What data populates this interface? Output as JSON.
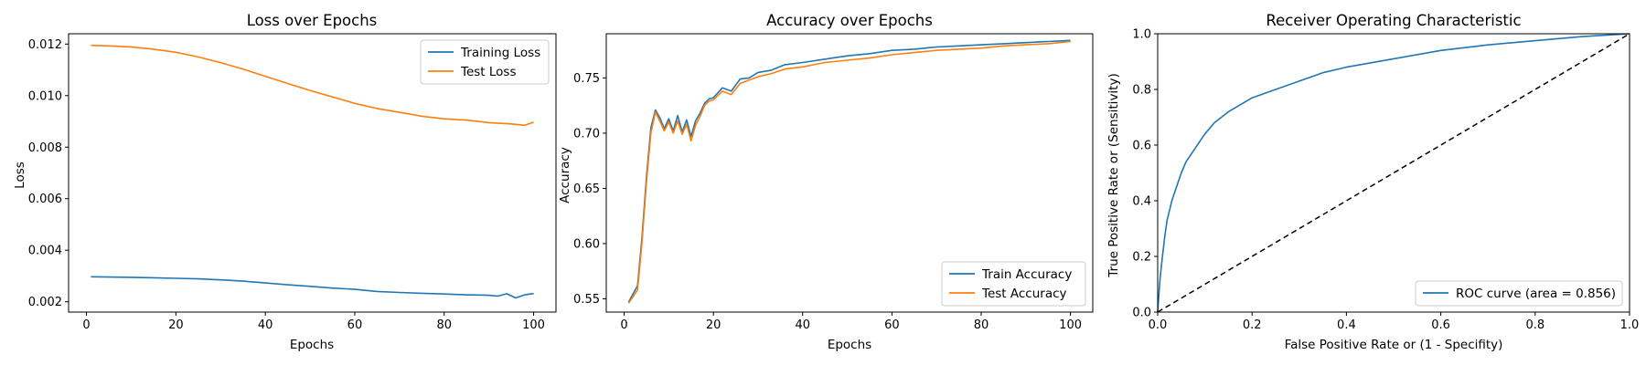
{
  "figure": {
    "background": "#ffffff",
    "colors": {
      "blue": "#1f77b4",
      "orange": "#ff7f0e",
      "black": "#000000",
      "legend_edge": "#cccccc"
    }
  },
  "chart_data": [
    {
      "type": "line",
      "title": "Loss over Epochs",
      "xlabel": "Epochs",
      "ylabel": "Loss",
      "xlim": [
        -4,
        105
      ],
      "ylim": [
        0.0016,
        0.0124
      ],
      "xticks": [
        0,
        20,
        40,
        60,
        80,
        100
      ],
      "yticks": [
        0.002,
        0.004,
        0.006,
        0.008,
        0.01,
        0.012
      ],
      "ytick_format": "%.3f",
      "grid": false,
      "legend": "upper right",
      "series": [
        {
          "name": "Training Loss",
          "color": "#1f77b4",
          "x": [
            1,
            5,
            10,
            15,
            20,
            25,
            30,
            35,
            40,
            45,
            50,
            55,
            60,
            65,
            70,
            75,
            80,
            85,
            90,
            92,
            94,
            96,
            98,
            100
          ],
          "y": [
            0.00297,
            0.00296,
            0.00295,
            0.00293,
            0.00291,
            0.00289,
            0.00285,
            0.0028,
            0.00273,
            0.00266,
            0.0026,
            0.00253,
            0.00248,
            0.0024,
            0.00236,
            0.00233,
            0.0023,
            0.00227,
            0.00225,
            0.00222,
            0.00231,
            0.00215,
            0.00227,
            0.00232
          ]
        },
        {
          "name": "Test Loss",
          "color": "#ff7f0e",
          "x": [
            1,
            5,
            10,
            15,
            20,
            25,
            30,
            35,
            40,
            45,
            50,
            55,
            60,
            65,
            70,
            75,
            80,
            85,
            90,
            95,
            98,
            100
          ],
          "y": [
            0.01195,
            0.01193,
            0.01189,
            0.0118,
            0.01168,
            0.0115,
            0.01128,
            0.01103,
            0.01075,
            0.01047,
            0.0102,
            0.00995,
            0.0097,
            0.0095,
            0.00935,
            0.0092,
            0.0091,
            0.00905,
            0.00895,
            0.0089,
            0.00885,
            0.00897
          ]
        }
      ]
    },
    {
      "type": "line",
      "title": "Accuracy over Epochs",
      "xlabel": "Epochs",
      "ylabel": "Accuracy",
      "xlim": [
        -4,
        105
      ],
      "ylim": [
        0.538,
        0.79
      ],
      "xticks": [
        0,
        20,
        40,
        60,
        80,
        100
      ],
      "yticks": [
        0.55,
        0.6,
        0.65,
        0.7,
        0.75
      ],
      "ytick_format": "%.2f",
      "grid": false,
      "legend": "lower right",
      "series": [
        {
          "name": "Train Accuracy",
          "color": "#1f77b4",
          "x": [
            1,
            3,
            4,
            5,
            6,
            7,
            8,
            9,
            10,
            11,
            12,
            13,
            14,
            15,
            16,
            17,
            18,
            19,
            20,
            22,
            24,
            26,
            28,
            30,
            33,
            36,
            40,
            45,
            50,
            55,
            60,
            65,
            70,
            75,
            80,
            85,
            90,
            95,
            100
          ],
          "y": [
            0.547,
            0.562,
            0.605,
            0.66,
            0.705,
            0.721,
            0.714,
            0.704,
            0.713,
            0.702,
            0.716,
            0.701,
            0.712,
            0.697,
            0.711,
            0.718,
            0.727,
            0.731,
            0.732,
            0.741,
            0.738,
            0.749,
            0.75,
            0.755,
            0.757,
            0.762,
            0.764,
            0.767,
            0.77,
            0.772,
            0.775,
            0.776,
            0.778,
            0.779,
            0.78,
            0.781,
            0.782,
            0.783,
            0.784
          ]
        },
        {
          "name": "Test Accuracy",
          "color": "#ff7f0e",
          "x": [
            1,
            3,
            4,
            5,
            6,
            7,
            8,
            9,
            10,
            11,
            12,
            13,
            14,
            15,
            16,
            17,
            18,
            19,
            20,
            22,
            24,
            26,
            28,
            30,
            33,
            36,
            40,
            45,
            50,
            55,
            60,
            65,
            70,
            75,
            80,
            85,
            90,
            95,
            100
          ],
          "y": [
            0.546,
            0.558,
            0.6,
            0.655,
            0.7,
            0.719,
            0.711,
            0.702,
            0.71,
            0.7,
            0.711,
            0.699,
            0.708,
            0.693,
            0.707,
            0.715,
            0.725,
            0.729,
            0.73,
            0.738,
            0.735,
            0.745,
            0.748,
            0.751,
            0.754,
            0.758,
            0.76,
            0.764,
            0.766,
            0.768,
            0.771,
            0.773,
            0.775,
            0.776,
            0.777,
            0.779,
            0.78,
            0.781,
            0.783
          ]
        }
      ]
    },
    {
      "type": "line",
      "title": "Receiver Operating Characteristic",
      "xlabel": "False Positive Rate or (1 - Specifity)",
      "ylabel": "True Positive Rate or (Sensitivity)",
      "xlim": [
        0,
        1
      ],
      "ylim": [
        0,
        1
      ],
      "xticks": [
        0.0,
        0.2,
        0.4,
        0.6,
        0.8,
        1.0
      ],
      "yticks": [
        0.0,
        0.2,
        0.4,
        0.6,
        0.8,
        1.0
      ],
      "ytick_format": "%.1f",
      "grid": false,
      "legend": "lower right",
      "series": [
        {
          "name": "ROC curve (area = 0.856)",
          "color": "#1f77b4",
          "x": [
            0.0,
            0.002,
            0.005,
            0.01,
            0.015,
            0.02,
            0.03,
            0.04,
            0.05,
            0.06,
            0.08,
            0.1,
            0.12,
            0.15,
            0.2,
            0.25,
            0.3,
            0.35,
            0.4,
            0.5,
            0.6,
            0.7,
            0.8,
            0.9,
            1.0
          ],
          "y": [
            0.0,
            0.05,
            0.12,
            0.2,
            0.27,
            0.33,
            0.4,
            0.45,
            0.5,
            0.54,
            0.59,
            0.64,
            0.68,
            0.72,
            0.77,
            0.8,
            0.83,
            0.86,
            0.88,
            0.91,
            0.94,
            0.96,
            0.975,
            0.99,
            1.0
          ]
        },
        {
          "name": "",
          "color": "#000000",
          "dashed": true,
          "x": [
            0,
            1
          ],
          "y": [
            0,
            1
          ]
        }
      ]
    }
  ]
}
